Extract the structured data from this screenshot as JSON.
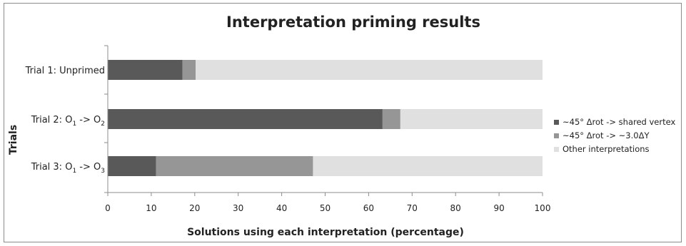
{
  "chart_data": {
    "type": "bar",
    "orientation": "horizontal",
    "stacked": true,
    "title": "Interpretation priming results",
    "xlabel": "Solutions using each interpretation (percentage)",
    "ylabel": "Trials",
    "xlim": [
      0,
      100
    ],
    "x_ticks": [
      0,
      10,
      20,
      30,
      40,
      50,
      60,
      70,
      80,
      90,
      100
    ],
    "grid": false,
    "legend_position": "right",
    "categories": [
      {
        "prefix": "Trial 1: Unprimed",
        "sub1": "",
        "mid": "",
        "sub2": ""
      },
      {
        "prefix": "Trial 2: O",
        "sub1": "1",
        "mid": " -> O",
        "sub2": "2"
      },
      {
        "prefix": "Trial 3: O",
        "sub1": "1",
        "mid": " -> O",
        "sub2": "3"
      }
    ],
    "series": [
      {
        "name": "~45°  Δrot -> shared vertex",
        "color": "#595959",
        "values": [
          17.2,
          63.2,
          11.1
        ]
      },
      {
        "name": "~45°  Δrot -> ~3.0ΔY",
        "color": "#969696",
        "values": [
          3.0,
          4.1,
          36.1
        ]
      },
      {
        "name": "Other interpretations",
        "color": "#e0e0e0",
        "values": [
          79.8,
          32.7,
          52.8
        ]
      }
    ]
  }
}
